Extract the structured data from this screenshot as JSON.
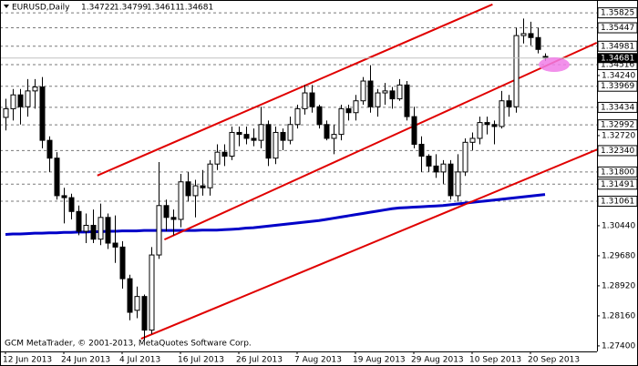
{
  "chart_data": {
    "type": "candlestick",
    "title": "EURUSD,Daily",
    "footer": "GCM MetaTrader, © 2001-2013, MetaQuotes Software Corp.",
    "categories": [
      "12 Jun 2013",
      null,
      null,
      null,
      null,
      null,
      null,
      null,
      "24 Jun 2013",
      null,
      null,
      null,
      null,
      null,
      null,
      null,
      "4 Jul 2013",
      null,
      null,
      null,
      null,
      null,
      null,
      null,
      "16 Jul 2013",
      null,
      null,
      null,
      null,
      null,
      null,
      null,
      "26 Jul 2013",
      null,
      null,
      null,
      null,
      null,
      null,
      null,
      "7 Aug 2013",
      null,
      null,
      null,
      null,
      null,
      null,
      null,
      "19 Aug 2013",
      null,
      null,
      null,
      null,
      null,
      null,
      null,
      "29 Aug 2013",
      null,
      null,
      null,
      null,
      null,
      null,
      null,
      "10 Sep 2013",
      null,
      null,
      null,
      null,
      null,
      null,
      null,
      "20 Sep 2013",
      null,
      null
    ],
    "open": [
      1.3318,
      1.334,
      1.3375,
      1.3345,
      1.3385,
      1.3395,
      1.326,
      1.3215,
      1.312,
      1.3115,
      1.308,
      1.303,
      1.3045,
      1.301,
      1.3065,
      1.3,
      1.299,
      1.291,
      1.283,
      1.2865,
      1.278,
      1.297,
      1.3095,
      1.3065,
      1.306,
      1.3155,
      1.312,
      1.3145,
      1.314,
      1.32,
      1.323,
      1.322,
      1.328,
      1.3275,
      1.3265,
      1.326,
      1.33,
      1.3215,
      1.328,
      1.326,
      1.33,
      1.334,
      1.338,
      1.3345,
      1.33,
      1.3265,
      1.3275,
      1.334,
      1.333,
      1.336,
      1.341,
      1.3345,
      1.338,
      1.3385,
      1.3365,
      1.34,
      1.332,
      1.325,
      1.322,
      1.3195,
      1.318,
      1.32,
      1.312,
      1.318,
      1.3255,
      1.3265,
      1.3305,
      1.33,
      1.3295,
      1.336,
      1.3345,
      1.3525,
      1.353,
      1.352,
      1.34722
    ],
    "high": [
      1.3365,
      1.339,
      1.339,
      1.3415,
      1.3415,
      1.342,
      1.327,
      1.323,
      1.314,
      1.3125,
      1.3095,
      1.3075,
      1.3085,
      1.31,
      1.3075,
      1.307,
      1.3005,
      1.292,
      1.289,
      1.287,
      1.299,
      1.3205,
      1.311,
      1.3085,
      1.3175,
      1.318,
      1.316,
      1.3185,
      1.321,
      1.325,
      1.325,
      1.3295,
      1.3295,
      1.3295,
      1.329,
      1.3345,
      1.331,
      1.3295,
      1.329,
      1.332,
      1.335,
      1.34,
      1.34,
      1.335,
      1.331,
      1.33,
      1.335,
      1.335,
      1.3375,
      1.342,
      1.345,
      1.339,
      1.3405,
      1.3395,
      1.3415,
      1.341,
      1.3345,
      1.327,
      1.3225,
      1.3225,
      1.321,
      1.321,
      1.3225,
      1.3265,
      1.328,
      1.332,
      1.332,
      1.331,
      1.3385,
      1.3375,
      1.3545,
      1.3568,
      1.356,
      1.3545,
      1.34799
    ],
    "low": [
      1.3285,
      1.331,
      1.33,
      1.332,
      1.334,
      1.324,
      1.318,
      1.311,
      1.305,
      1.306,
      1.302,
      1.3,
      1.3,
      1.2995,
      1.2985,
      1.295,
      1.2885,
      1.2805,
      1.281,
      1.2755,
      1.277,
      1.296,
      1.303,
      1.302,
      1.304,
      1.3105,
      1.3065,
      1.312,
      1.312,
      1.3185,
      1.3195,
      1.321,
      1.3245,
      1.325,
      1.3245,
      1.324,
      1.3195,
      1.32,
      1.3235,
      1.325,
      1.329,
      1.3325,
      1.333,
      1.329,
      1.326,
      1.3225,
      1.326,
      1.331,
      1.331,
      1.335,
      1.333,
      1.332,
      1.335,
      1.334,
      1.336,
      1.331,
      1.324,
      1.318,
      1.318,
      1.3165,
      1.315,
      1.311,
      1.3105,
      1.317,
      1.3235,
      1.325,
      1.3275,
      1.325,
      1.329,
      1.332,
      1.333,
      1.3505,
      1.35,
      1.348,
      1.34611
    ],
    "close": [
      1.334,
      1.3375,
      1.3345,
      1.3385,
      1.3395,
      1.326,
      1.3215,
      1.312,
      1.3115,
      1.308,
      1.303,
      1.3045,
      1.301,
      1.3065,
      1.3,
      1.299,
      1.291,
      1.2825,
      1.2865,
      1.278,
      1.297,
      1.3095,
      1.3065,
      1.306,
      1.3155,
      1.312,
      1.3145,
      1.314,
      1.32,
      1.323,
      1.322,
      1.328,
      1.3275,
      1.3265,
      1.326,
      1.33,
      1.3215,
      1.328,
      1.326,
      1.33,
      1.334,
      1.338,
      1.3345,
      1.33,
      1.3265,
      1.3275,
      1.334,
      1.333,
      1.336,
      1.341,
      1.3345,
      1.338,
      1.3385,
      1.3365,
      1.34,
      1.332,
      1.325,
      1.322,
      1.3195,
      1.318,
      1.32,
      1.312,
      1.318,
      1.3255,
      1.3265,
      1.3305,
      1.33,
      1.3295,
      1.336,
      1.3345,
      1.3525,
      1.353,
      1.352,
      1.349,
      1.34681
    ],
    "up_color": "#ffffff",
    "down_color": "#000000",
    "wick_color": "#000000",
    "moving_average": {
      "color": "#0000c8",
      "values": [
        1.3022,
        1.3023,
        1.3023,
        1.3024,
        1.3025,
        1.3025,
        1.3026,
        1.3026,
        1.3027,
        1.3027,
        1.3028,
        1.3028,
        1.3029,
        1.3029,
        1.303,
        1.303,
        1.3031,
        1.3031,
        1.3031,
        1.3032,
        1.3032,
        1.3032,
        1.3032,
        1.3032,
        1.3032,
        1.3032,
        1.3032,
        1.3033,
        1.3033,
        1.3033,
        1.3034,
        1.3035,
        1.3036,
        1.3038,
        1.3039,
        1.3041,
        1.3043,
        1.3045,
        1.3047,
        1.3049,
        1.3051,
        1.3053,
        1.3055,
        1.3057,
        1.306,
        1.3063,
        1.3066,
        1.3069,
        1.3072,
        1.3075,
        1.3078,
        1.3081,
        1.3084,
        1.3087,
        1.3089,
        1.309,
        1.3091,
        1.3092,
        1.3093,
        1.3094,
        1.3095,
        1.3097,
        1.3099,
        1.3101,
        1.3103,
        1.3105,
        1.3107,
        1.3109,
        1.3111,
        1.3113,
        1.3115,
        1.3117,
        1.3119,
        1.3121,
        1.3123
      ]
    },
    "trendlines": [
      {
        "color": "#e00000",
        "start": [
          12.6,
          1.3171
        ],
        "end": [
          66.8,
          1.3604
        ]
      },
      {
        "color": "#e00000",
        "start": [
          21.8,
          1.3009
        ],
        "end": [
          81.1,
          1.3507
        ]
      },
      {
        "color": "#e00000",
        "start": [
          18.6,
          1.2758
        ],
        "end": [
          85.5,
          1.327
        ]
      }
    ],
    "ylim": [
      1.2726,
      1.3615
    ],
    "yticks": [
      {
        "value": 1.274,
        "label": "1.27400"
      },
      {
        "value": 1.2816,
        "label": "1.28160"
      },
      {
        "value": 1.2892,
        "label": "1.28920"
      },
      {
        "value": 1.2968,
        "label": "1.29680"
      },
      {
        "value": 1.3044,
        "label": "1.30440"
      },
      {
        "value": 1.3272,
        "label": "1.32720"
      },
      {
        "value": 1.3424,
        "label": "1.34240"
      }
    ],
    "levels": [
      1.35825,
      1.35447,
      1.34981,
      1.34516,
      1.33969,
      1.33434,
      1.32992,
      {
        "value": 1.3234,
        "label": "1.32340"
      },
      {
        "value": 1.318,
        "label": "1.31800"
      },
      1.31491,
      1.31061
    ]
  }
}
